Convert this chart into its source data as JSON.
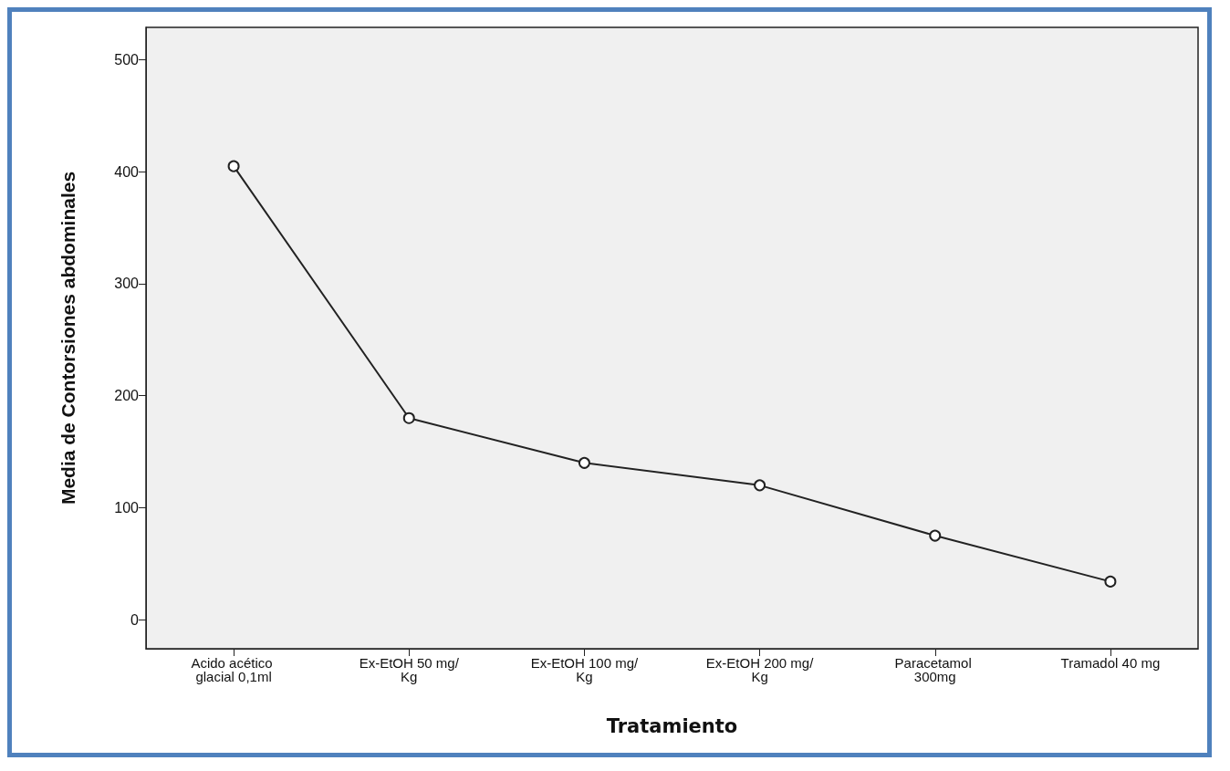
{
  "chart_data": {
    "type": "line",
    "xlabel": "Tratamiento",
    "ylabel": "Media de Contorsiones abdominales",
    "categories": [
      "Acido acético glacial 0,1ml",
      "Ex-EtOH 50 mg/Kg",
      "Ex-EtOH 100 mg/Kg",
      "Ex-EtOH 200 mg/Kg",
      "Paracetamol 300mg",
      "Tramadol 40 mg"
    ],
    "series": [
      {
        "color": "#222222",
        "values": [
          405,
          180,
          140,
          120,
          75,
          34
        ]
      }
    ],
    "ylim": [
      -26,
      529
    ],
    "yticks": [
      0,
      100,
      200,
      300,
      400,
      500
    ],
    "grid": false,
    "marker": "circle",
    "line_style": "solid"
  }
}
